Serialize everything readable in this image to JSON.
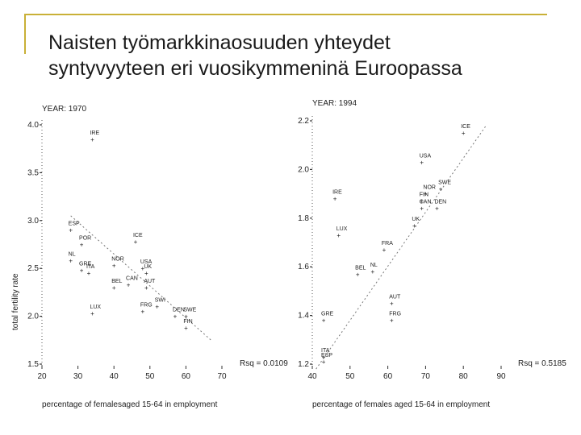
{
  "slide": {
    "title_line1": "Naisten työmarkkinaosuuden yhteydet",
    "title_line2": "syntyvyyteen eri vuosikymmeninä Euroopassa"
  },
  "colors": {
    "accent_line": "#c9b037",
    "marker": "#d2374b",
    "trend": "#777777"
  },
  "chart_data": [
    {
      "type": "scatter",
      "panel_label": "YEAR: 1970",
      "xlabel": "percentage of femalesaged 15-64 in employment",
      "ylabel": "total fertility rate",
      "xlim": [
        20,
        70
      ],
      "ylim": [
        1.5,
        4.0
      ],
      "x_ticks": [
        "20",
        "30",
        "40",
        "50",
        "60",
        "70"
      ],
      "y_ticks": [
        "4.0",
        "3.5",
        "3.0",
        "2.5",
        "2.0",
        "1.5"
      ],
      "annotation": "Rsq = 0.0109",
      "trend": {
        "x": [
          28,
          67
        ],
        "y": [
          3.05,
          1.75
        ]
      },
      "points": [
        {
          "label": "IRE",
          "x": 34,
          "y": 3.85
        },
        {
          "label": "ESP",
          "x": 28,
          "y": 2.9
        },
        {
          "label": "POR",
          "x": 31,
          "y": 2.75
        },
        {
          "label": "ICE",
          "x": 46,
          "y": 2.78
        },
        {
          "label": "NL",
          "x": 28,
          "y": 2.58
        },
        {
          "label": "NOR",
          "x": 40,
          "y": 2.53
        },
        {
          "label": "GRE",
          "x": 31,
          "y": 2.48
        },
        {
          "label": "ITA",
          "x": 33,
          "y": 2.45
        },
        {
          "label": "USA",
          "x": 48,
          "y": 2.5
        },
        {
          "label": "UK",
          "x": 49,
          "y": 2.45
        },
        {
          "label": "CAN",
          "x": 44,
          "y": 2.33
        },
        {
          "label": "AUT",
          "x": 49,
          "y": 2.3
        },
        {
          "label": "BEL",
          "x": 40,
          "y": 2.3
        },
        {
          "label": "SWI",
          "x": 52,
          "y": 2.1
        },
        {
          "label": "FRG",
          "x": 48,
          "y": 2.05
        },
        {
          "label": "LUX",
          "x": 34,
          "y": 2.03
        },
        {
          "label": "DEN",
          "x": 57,
          "y": 2.0
        },
        {
          "label": "SWE",
          "x": 60,
          "y": 2.0
        },
        {
          "label": "FIN",
          "x": 60,
          "y": 1.88
        }
      ]
    },
    {
      "type": "scatter",
      "panel_label": "YEAR: 1994",
      "xlabel": "percentage of females aged 15-64 in employment",
      "ylabel": "",
      "xlim": [
        40,
        90
      ],
      "ylim": [
        1.2,
        2.2
      ],
      "x_ticks": [
        "40",
        "50",
        "60",
        "70",
        "80",
        "90"
      ],
      "y_ticks": [
        "2.2",
        "2.0",
        "1.8",
        "1.6",
        "1.4",
        "1.2"
      ],
      "annotation": "Rsq = 0.5185",
      "trend": {
        "x": [
          41,
          86
        ],
        "y": [
          1.18,
          2.18
        ]
      },
      "points": [
        {
          "label": "ICE",
          "x": 80,
          "y": 2.15
        },
        {
          "label": "USA",
          "x": 69,
          "y": 2.03
        },
        {
          "label": "IRE",
          "x": 46,
          "y": 1.88
        },
        {
          "label": "NOR",
          "x": 70,
          "y": 1.9
        },
        {
          "label": "SWE",
          "x": 74,
          "y": 1.92
        },
        {
          "label": "FIN",
          "x": 69,
          "y": 1.87
        },
        {
          "label": "CAN",
          "x": 69,
          "y": 1.84
        },
        {
          "label": "DEN",
          "x": 73,
          "y": 1.84
        },
        {
          "label": "UK",
          "x": 67,
          "y": 1.77
        },
        {
          "label": "LUX",
          "x": 47,
          "y": 1.73
        },
        {
          "label": "FRA",
          "x": 59,
          "y": 1.67
        },
        {
          "label": "NL",
          "x": 56,
          "y": 1.58
        },
        {
          "label": "BEL",
          "x": 52,
          "y": 1.57
        },
        {
          "label": "AUT",
          "x": 61,
          "y": 1.45
        },
        {
          "label": "FRG",
          "x": 61,
          "y": 1.38
        },
        {
          "label": "GRE",
          "x": 43,
          "y": 1.38
        },
        {
          "label": "ITA",
          "x": 43,
          "y": 1.23
        },
        {
          "label": "ESP",
          "x": 43,
          "y": 1.21
        }
      ]
    }
  ]
}
